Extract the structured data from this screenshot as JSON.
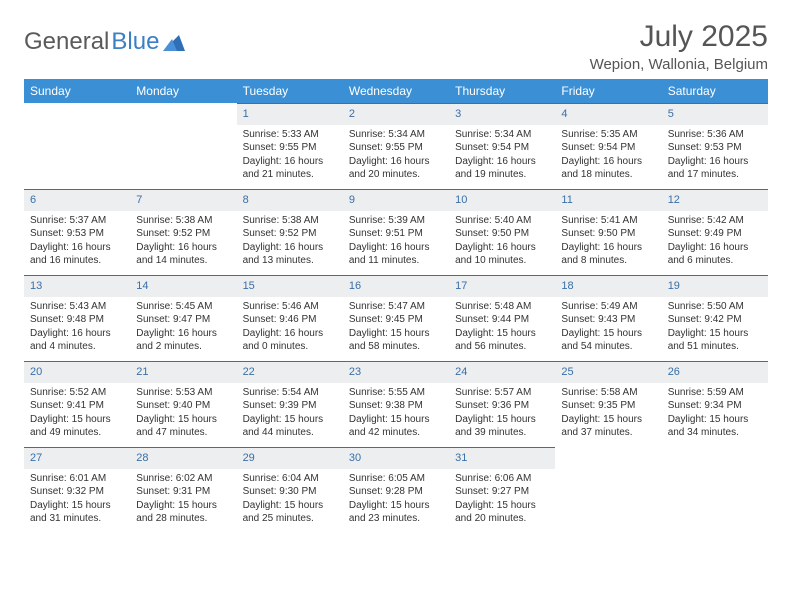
{
  "logo": {
    "text1": "General",
    "text2": "Blue"
  },
  "title": "July 2025",
  "location": "Wepion, Wallonia, Belgium",
  "colors": {
    "header_bg": "#3b8fd4",
    "header_text": "#ffffff",
    "daynum_bg": "#eceef0",
    "daynum_text": "#3a6fa8",
    "border": "#3a6fa8",
    "body_text": "#333333",
    "title_text": "#555555"
  },
  "weekdays": [
    "Sunday",
    "Monday",
    "Tuesday",
    "Wednesday",
    "Thursday",
    "Friday",
    "Saturday"
  ],
  "weeks": [
    [
      null,
      null,
      {
        "n": "1",
        "sr": "5:33 AM",
        "ss": "9:55 PM",
        "dl": "16 hours and 21 minutes."
      },
      {
        "n": "2",
        "sr": "5:34 AM",
        "ss": "9:55 PM",
        "dl": "16 hours and 20 minutes."
      },
      {
        "n": "3",
        "sr": "5:34 AM",
        "ss": "9:54 PM",
        "dl": "16 hours and 19 minutes."
      },
      {
        "n": "4",
        "sr": "5:35 AM",
        "ss": "9:54 PM",
        "dl": "16 hours and 18 minutes."
      },
      {
        "n": "5",
        "sr": "5:36 AM",
        "ss": "9:53 PM",
        "dl": "16 hours and 17 minutes."
      }
    ],
    [
      {
        "n": "6",
        "sr": "5:37 AM",
        "ss": "9:53 PM",
        "dl": "16 hours and 16 minutes."
      },
      {
        "n": "7",
        "sr": "5:38 AM",
        "ss": "9:52 PM",
        "dl": "16 hours and 14 minutes."
      },
      {
        "n": "8",
        "sr": "5:38 AM",
        "ss": "9:52 PM",
        "dl": "16 hours and 13 minutes."
      },
      {
        "n": "9",
        "sr": "5:39 AM",
        "ss": "9:51 PM",
        "dl": "16 hours and 11 minutes."
      },
      {
        "n": "10",
        "sr": "5:40 AM",
        "ss": "9:50 PM",
        "dl": "16 hours and 10 minutes."
      },
      {
        "n": "11",
        "sr": "5:41 AM",
        "ss": "9:50 PM",
        "dl": "16 hours and 8 minutes."
      },
      {
        "n": "12",
        "sr": "5:42 AM",
        "ss": "9:49 PM",
        "dl": "16 hours and 6 minutes."
      }
    ],
    [
      {
        "n": "13",
        "sr": "5:43 AM",
        "ss": "9:48 PM",
        "dl": "16 hours and 4 minutes."
      },
      {
        "n": "14",
        "sr": "5:45 AM",
        "ss": "9:47 PM",
        "dl": "16 hours and 2 minutes."
      },
      {
        "n": "15",
        "sr": "5:46 AM",
        "ss": "9:46 PM",
        "dl": "16 hours and 0 minutes."
      },
      {
        "n": "16",
        "sr": "5:47 AM",
        "ss": "9:45 PM",
        "dl": "15 hours and 58 minutes."
      },
      {
        "n": "17",
        "sr": "5:48 AM",
        "ss": "9:44 PM",
        "dl": "15 hours and 56 minutes."
      },
      {
        "n": "18",
        "sr": "5:49 AM",
        "ss": "9:43 PM",
        "dl": "15 hours and 54 minutes."
      },
      {
        "n": "19",
        "sr": "5:50 AM",
        "ss": "9:42 PM",
        "dl": "15 hours and 51 minutes."
      }
    ],
    [
      {
        "n": "20",
        "sr": "5:52 AM",
        "ss": "9:41 PM",
        "dl": "15 hours and 49 minutes."
      },
      {
        "n": "21",
        "sr": "5:53 AM",
        "ss": "9:40 PM",
        "dl": "15 hours and 47 minutes."
      },
      {
        "n": "22",
        "sr": "5:54 AM",
        "ss": "9:39 PM",
        "dl": "15 hours and 44 minutes."
      },
      {
        "n": "23",
        "sr": "5:55 AM",
        "ss": "9:38 PM",
        "dl": "15 hours and 42 minutes."
      },
      {
        "n": "24",
        "sr": "5:57 AM",
        "ss": "9:36 PM",
        "dl": "15 hours and 39 minutes."
      },
      {
        "n": "25",
        "sr": "5:58 AM",
        "ss": "9:35 PM",
        "dl": "15 hours and 37 minutes."
      },
      {
        "n": "26",
        "sr": "5:59 AM",
        "ss": "9:34 PM",
        "dl": "15 hours and 34 minutes."
      }
    ],
    [
      {
        "n": "27",
        "sr": "6:01 AM",
        "ss": "9:32 PM",
        "dl": "15 hours and 31 minutes."
      },
      {
        "n": "28",
        "sr": "6:02 AM",
        "ss": "9:31 PM",
        "dl": "15 hours and 28 minutes."
      },
      {
        "n": "29",
        "sr": "6:04 AM",
        "ss": "9:30 PM",
        "dl": "15 hours and 25 minutes."
      },
      {
        "n": "30",
        "sr": "6:05 AM",
        "ss": "9:28 PM",
        "dl": "15 hours and 23 minutes."
      },
      {
        "n": "31",
        "sr": "6:06 AM",
        "ss": "9:27 PM",
        "dl": "15 hours and 20 minutes."
      },
      null,
      null
    ]
  ],
  "labels": {
    "sunrise": "Sunrise:",
    "sunset": "Sunset:",
    "daylight": "Daylight:"
  }
}
